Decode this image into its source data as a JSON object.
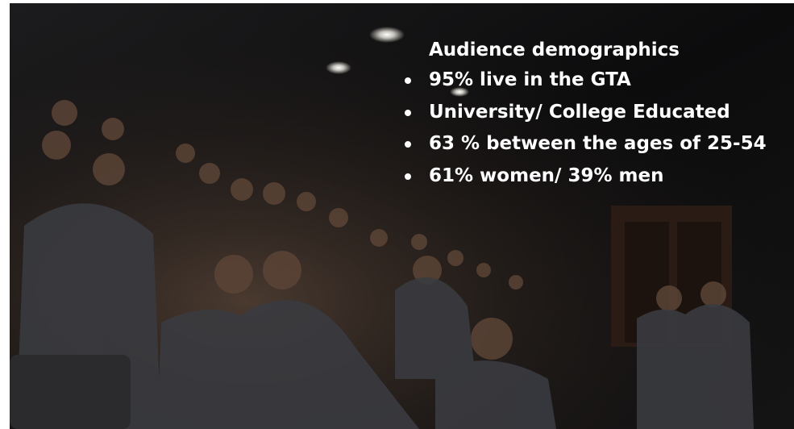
{
  "heading": "Audience demographics",
  "bullets": [
    "95% live in the GTA",
    "University/ College Educated",
    "63 % between the ages of 25-54",
    "61% women/ 39% men"
  ]
}
